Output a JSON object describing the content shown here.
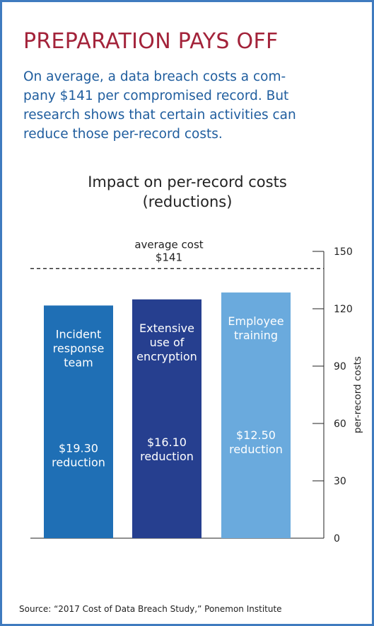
{
  "headline": "PREPARATION PAYS OFF",
  "intro": [
    "On average, a data breach costs a com-",
    "pany $141 per compromised record. But",
    "research shows that certain activities can",
    "reduce those per-record costs."
  ],
  "source": "Source: “2017 Cost of Data Breach Study,” Ponemon Institute",
  "colors": {
    "headline": "#a3233a",
    "intro": "#1f5d9e",
    "frame": "#3f7bbf"
  },
  "chart_data": {
    "type": "bar",
    "title_lines": [
      "Impact on per-record costs",
      "(reductions)"
    ],
    "categories": [
      [
        "Incident",
        "response",
        "team"
      ],
      [
        "Extensive",
        "use of",
        "encryption"
      ],
      [
        "Employee",
        "training"
      ]
    ],
    "values": [
      121.7,
      124.9,
      128.5
    ],
    "reduction_labels": [
      [
        "$19.30",
        "reduction"
      ],
      [
        "$16.10",
        "reduction"
      ],
      [
        "$12.50",
        "reduction"
      ]
    ],
    "colors": [
      "#1f6fb5",
      "#263f8f",
      "#6aaadd"
    ],
    "ylabel": "per-record costs",
    "ylim": [
      0,
      150
    ],
    "yticks": [
      0,
      30,
      60,
      90,
      120,
      150
    ],
    "reference_line": {
      "value": 141,
      "label_lines": [
        "average cost",
        "$141"
      ]
    },
    "grid": false
  }
}
